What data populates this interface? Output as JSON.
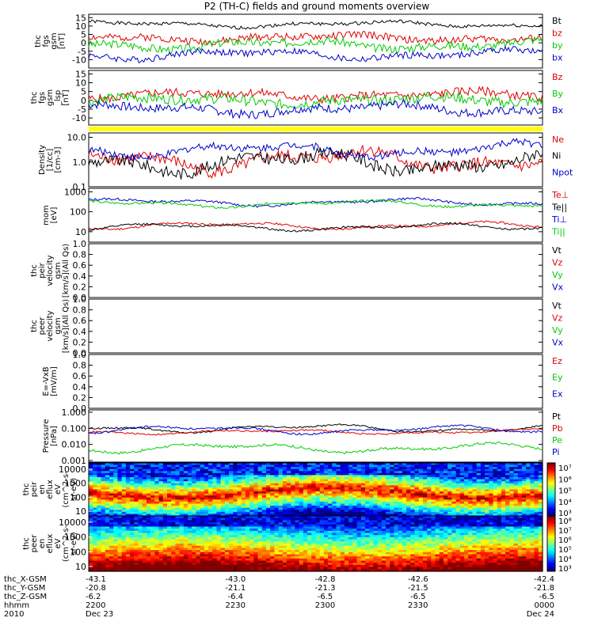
{
  "title": "P2 (TH-C) fields and ground moments overview",
  "colors": {
    "black": "#000000",
    "red": "#e00000",
    "green": "#00cc00",
    "blue": "#0000cc",
    "yellow": "#ffff00"
  },
  "chart_data": [
    {
      "type": "line",
      "panel": "fgs-gsm",
      "ylabel": [
        "thc",
        "fgs",
        "gsm",
        "[nT]"
      ],
      "yticks": [
        "15",
        "10",
        "5",
        "0",
        "-5",
        "-10"
      ],
      "ylim": [
        -15,
        17
      ],
      "series": [
        {
          "name": "Bt",
          "color": "black",
          "mean": 11,
          "amp": 2.5,
          "noise": 1.0,
          "seed": 1
        },
        {
          "name": "bz",
          "color": "red",
          "mean": 3,
          "amp": 3,
          "noise": 2.2,
          "seed": 2
        },
        {
          "name": "by",
          "color": "green",
          "mean": -1,
          "amp": 4,
          "noise": 2.5,
          "seed": 3
        },
        {
          "name": "bx",
          "color": "blue",
          "mean": -7,
          "amp": 4,
          "noise": 2.0,
          "seed": 4
        }
      ]
    },
    {
      "type": "line",
      "panel": "fgs-gsm-perp",
      "ylabel": [
        "thc",
        "fgs",
        "gsm",
        "_lsp",
        "[nT]"
      ],
      "yticks": [
        "15",
        "10",
        "5",
        "0",
        "-5",
        "-10"
      ],
      "ylim": [
        -14,
        17
      ],
      "series": [
        {
          "name": "Bz",
          "color": "red",
          "mean": 3,
          "amp": 3,
          "noise": 2.5,
          "seed": 5
        },
        {
          "name": "By",
          "color": "green",
          "mean": 0,
          "amp": 3,
          "noise": 3.0,
          "seed": 6
        },
        {
          "name": "Bx",
          "color": "blue",
          "mean": -5,
          "amp": 4,
          "noise": 2.5,
          "seed": 7
        }
      ]
    },
    {
      "type": "bar",
      "panel": "quality-flag",
      "color": "yellow"
    },
    {
      "type": "line",
      "panel": "density",
      "log": true,
      "ylabel": [
        "Density",
        "[1/cc]",
        "[cm-3]"
      ],
      "yticks": [
        "10.0",
        "1.0",
        "0.1"
      ],
      "ylim": [
        0.1,
        15
      ],
      "series": [
        {
          "name": "Ne",
          "color": "red",
          "mean": 1.2,
          "amp": 0.6,
          "noise": 0.25,
          "seed": 8
        },
        {
          "name": "Ni",
          "color": "black",
          "mean": 1.0,
          "amp": 0.6,
          "noise": 0.25,
          "seed": 9
        },
        {
          "name": "Npot",
          "color": "blue",
          "mean": 3.0,
          "amp": 0.4,
          "noise": 0.15,
          "seed": 10
        }
      ]
    },
    {
      "type": "line",
      "panel": "temperature",
      "log": true,
      "ylabel": [
        "mom",
        "[eV]"
      ],
      "yticks": [
        "1000",
        "100",
        "10"
      ],
      "ylim": [
        3,
        1500
      ],
      "series": [
        {
          "name": "Te⊥",
          "color": "red",
          "mean": 20,
          "amp": 0.25,
          "noise": 0.05,
          "seed": 11
        },
        {
          "name": "Te||",
          "color": "black",
          "mean": 17,
          "amp": 0.25,
          "noise": 0.05,
          "seed": 12
        },
        {
          "name": "Ti⊥",
          "color": "blue",
          "mean": 300,
          "amp": 0.25,
          "noise": 0.06,
          "seed": 13
        },
        {
          "name": "Ti||",
          "color": "green",
          "mean": 250,
          "amp": 0.25,
          "noise": 0.06,
          "seed": 14
        }
      ]
    },
    {
      "type": "line",
      "panel": "peir-velocity",
      "ylabel": [
        "thc",
        "peir",
        "velocity",
        "gsm",
        "[km/s](All Qs)"
      ],
      "yticks": [
        "1.0",
        "0.8",
        "0.6",
        "0.4",
        "0.2",
        "0.0"
      ],
      "ylim": [
        0,
        1
      ],
      "series": [
        {
          "name": "Vt",
          "color": "black"
        },
        {
          "name": "Vz",
          "color": "red"
        },
        {
          "name": "Vy",
          "color": "green"
        },
        {
          "name": "Vx",
          "color": "blue"
        }
      ]
    },
    {
      "type": "line",
      "panel": "peer-velocity",
      "ylabel": [
        "thc",
        "peer",
        "velocity",
        "gsm",
        "[km/s](All Qs)"
      ],
      "yticks": [
        "1.0",
        "0.8",
        "0.6",
        "0.4",
        "0.2",
        "0.0"
      ],
      "ylim": [
        0,
        1
      ],
      "series": [
        {
          "name": "Vt",
          "color": "black"
        },
        {
          "name": "Vz",
          "color": "red"
        },
        {
          "name": "Vy",
          "color": "green"
        },
        {
          "name": "Vx",
          "color": "blue"
        }
      ]
    },
    {
      "type": "line",
      "panel": "efield",
      "ylabel": [
        "E=-VxB",
        "[mV/m]"
      ],
      "yticks": [
        "1.0",
        "0.8",
        "0.6",
        "0.4",
        "0.2",
        "0.0"
      ],
      "ylim": [
        0,
        1
      ],
      "series": [
        {
          "name": "Ez",
          "color": "red"
        },
        {
          "name": "Ey",
          "color": "green"
        },
        {
          "name": "Ex",
          "color": "blue"
        }
      ]
    },
    {
      "type": "line",
      "panel": "pressure",
      "log": true,
      "ylabel": [
        "Pressure",
        "[nPa]"
      ],
      "yticks": [
        "1.000",
        "0.100",
        "0.010",
        "0.001"
      ],
      "ylim": [
        0.0008,
        1.4
      ],
      "series": [
        {
          "name": "Pt",
          "color": "black",
          "mean": 0.1,
          "amp": 0.35,
          "noise": 0.05,
          "seed": 15
        },
        {
          "name": "Pb",
          "color": "red",
          "mean": 0.06,
          "amp": 0.2,
          "noise": 0.05,
          "seed": 16
        },
        {
          "name": "Pe",
          "color": "green",
          "mean": 0.006,
          "amp": 0.4,
          "noise": 0.08,
          "seed": 17
        },
        {
          "name": "Pi",
          "color": "blue",
          "mean": 0.08,
          "amp": 0.35,
          "noise": 0.06,
          "seed": 18
        }
      ]
    },
    {
      "type": "heatmap",
      "panel": "peir-en-eflux",
      "ylabel": [
        "thc",
        "peir",
        "en",
        "eflux",
        "eV",
        "(cm^2-s-",
        "sr-eV)"
      ],
      "yticks": [
        "10000",
        "1000",
        "100",
        "10"
      ],
      "colorbar": [
        "10⁷",
        "10⁶",
        "10⁵",
        "10⁴",
        "10³"
      ]
    },
    {
      "type": "heatmap",
      "panel": "peer-en-eflux",
      "ylabel": [
        "thc",
        "peer",
        "en",
        "eflux",
        "eV",
        "(cm^2-s-",
        "sr-eV)"
      ],
      "yticks": [
        "10000",
        "1000",
        "100",
        "10"
      ],
      "colorbar": [
        "10⁸",
        "10⁷",
        "10⁶",
        "10⁵",
        "10⁴",
        "10³"
      ]
    }
  ],
  "xaxis": {
    "rows": [
      {
        "label": "thc_X-GSM",
        "values": [
          "-43.1",
          "-43.0",
          "-42.8",
          "-42.6",
          "-42.4"
        ]
      },
      {
        "label": "thc_Y-GSM",
        "values": [
          "-20.8",
          "-21.1",
          "-21.3",
          "-21.5",
          "-21.8"
        ]
      },
      {
        "label": "thc_Z-GSM",
        "values": [
          "-6.2",
          "-6.4",
          "-6.5",
          "-6.5",
          "-6.5"
        ]
      },
      {
        "label": "hhmm",
        "values": [
          "2200",
          "2230",
          "2300",
          "2330",
          "0000"
        ]
      },
      {
        "label": "2010",
        "values": [
          "Dec 23",
          "",
          "",
          "",
          "Dec 24"
        ]
      }
    ]
  }
}
